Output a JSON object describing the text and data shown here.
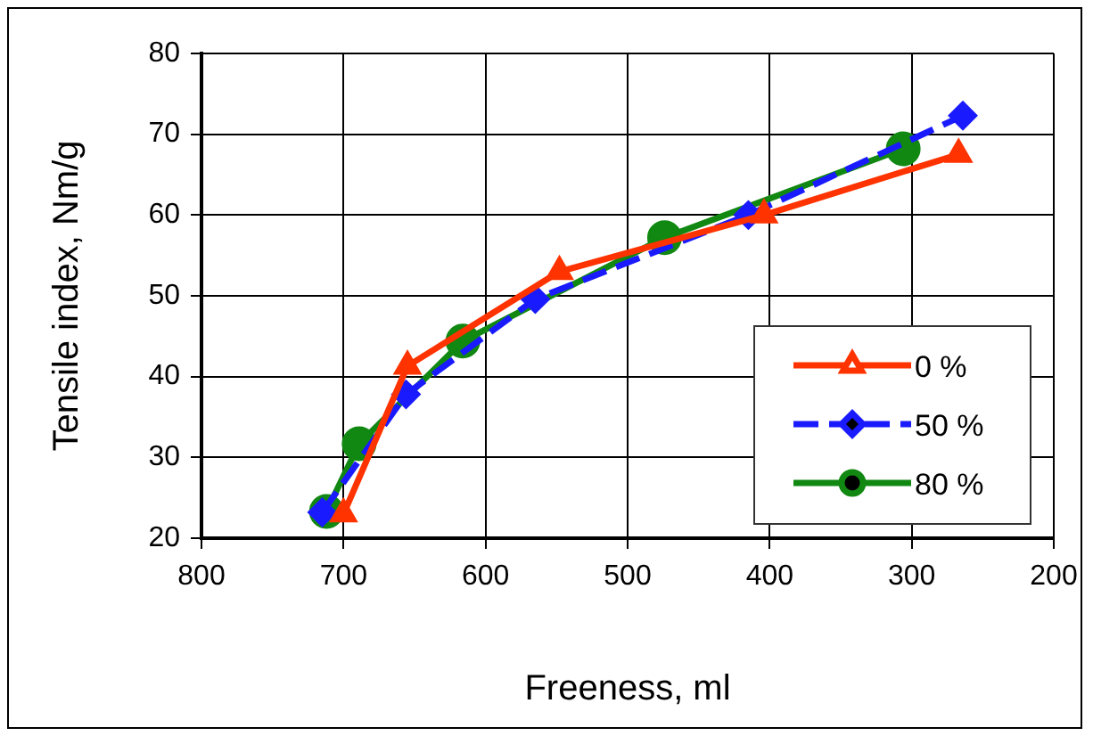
{
  "chart_data": {
    "type": "line",
    "xlabel": "Freeness, ml",
    "ylabel": "Tensile index, Nm/g",
    "xlim": [
      800,
      200
    ],
    "xticks": [
      800,
      700,
      600,
      500,
      400,
      300,
      200
    ],
    "ylim": [
      20,
      80
    ],
    "yticks": [
      20,
      30,
      40,
      50,
      60,
      70,
      80
    ],
    "grid": true,
    "legend": "bottom right",
    "series": [
      {
        "name": "0 %",
        "color": "#ff3300",
        "marker": "triangle",
        "line_style": "solid",
        "x": [
          700,
          655,
          548,
          404,
          267
        ],
        "values": [
          23,
          41.3,
          53,
          60,
          67.5
        ]
      },
      {
        "name": "50 %",
        "color": "#1a1aff",
        "marker": "diamond",
        "line_style": "dashed",
        "x": [
          715,
          656,
          565,
          415,
          264
        ],
        "values": [
          23.2,
          37.8,
          49.6,
          60,
          72.3
        ]
      },
      {
        "name": "80 %",
        "color": "#118811",
        "marker": "circle",
        "line_style": "solid",
        "x": [
          712,
          689,
          616,
          474,
          306
        ],
        "values": [
          23.3,
          31.7,
          44.4,
          57.2,
          68.2
        ]
      }
    ]
  }
}
